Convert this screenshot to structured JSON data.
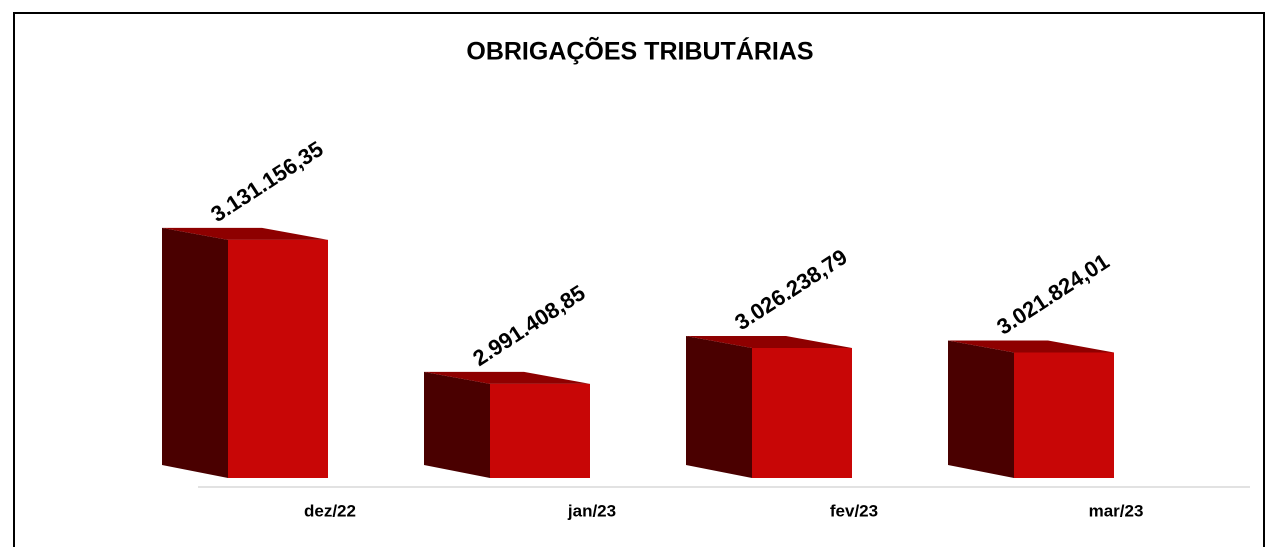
{
  "chart_data": {
    "type": "bar3d",
    "title": "OBRIGAÇÕES TRIBUTÁRIAS",
    "categories": [
      "dez/22",
      "jan/23",
      "fev/23",
      "mar/23"
    ],
    "values": [
      3131156.35,
      2991408.85,
      3026238.79,
      3021824.01
    ],
    "value_labels": [
      "3.131.156,35",
      "2.991.408,85",
      "3.026.238,79",
      "3.021.824,01"
    ],
    "color": "#c80606",
    "side_color": "#4a0000",
    "top_color": "#8e0000",
    "ylim": [
      2900000,
      3300000
    ]
  }
}
